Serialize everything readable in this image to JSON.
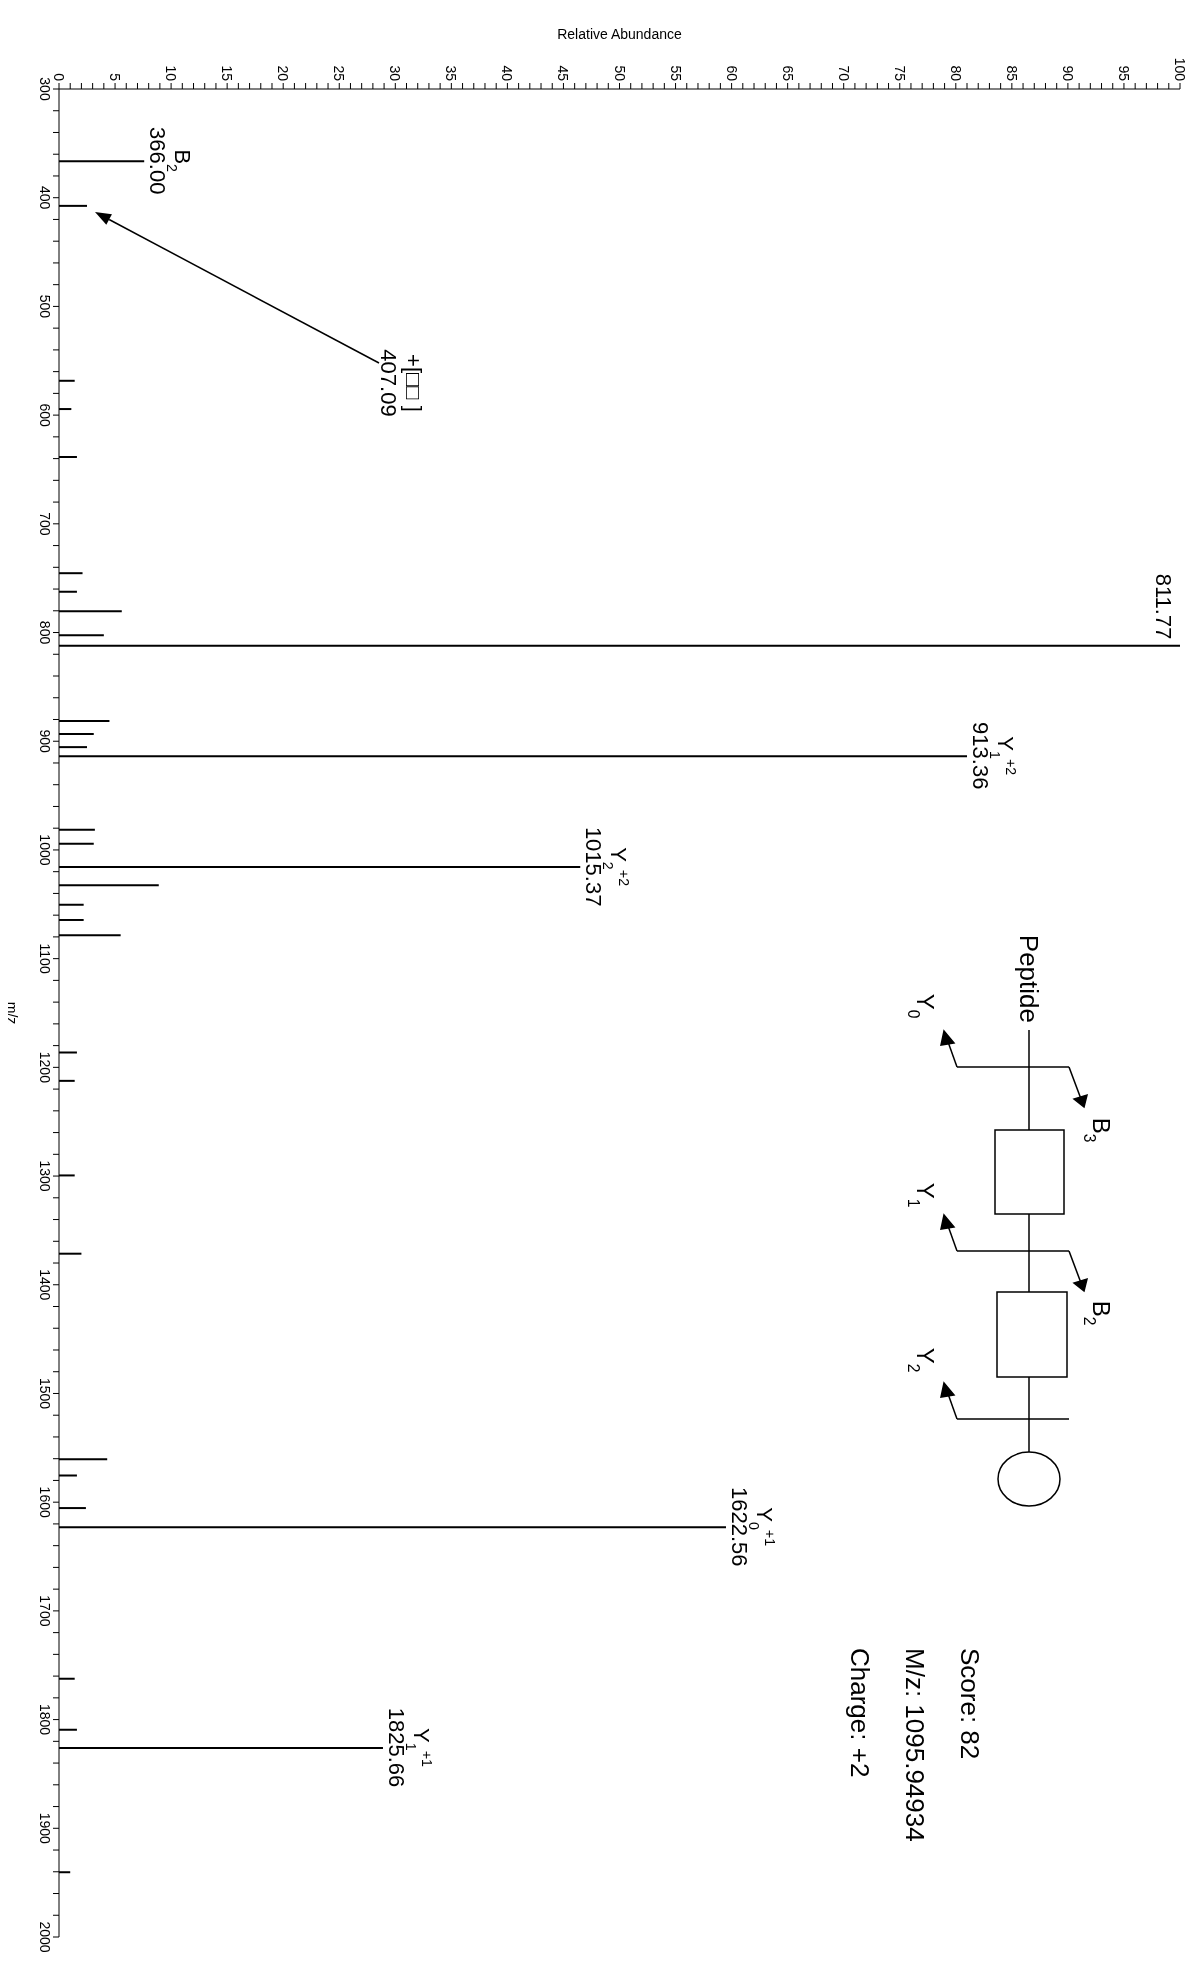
{
  "chart_data": {
    "type": "bar",
    "orientation": "horizontal",
    "xlabel": "Relative Abundance",
    "ylabel": "m/z",
    "color": "#000000",
    "x": [
      366.0,
      407.09,
      568,
      594,
      638,
      745,
      762,
      780,
      802,
      811.77,
      881,
      893,
      905,
      913.36,
      981,
      994,
      1015.37,
      1032,
      1050,
      1064,
      1078,
      1186,
      1212,
      1299,
      1371,
      1560,
      1575,
      1605,
      1622.56,
      1762,
      1809,
      1825.66,
      1940
    ],
    "values": [
      7.6,
      2.5,
      1.4,
      1.1,
      1.6,
      2.1,
      1.6,
      5.6,
      4.0,
      100,
      4.5,
      3.1,
      2.5,
      81,
      3.2,
      3.1,
      46.5,
      8.9,
      2.2,
      2.2,
      5.5,
      1.6,
      1.4,
      1.4,
      2.0,
      4.3,
      1.6,
      2.4,
      59.5,
      1.4,
      1.6,
      28.9,
      1.0
    ],
    "ylim": [
      2000,
      300
    ],
    "yticks": [
      300,
      {
        "value": 320,
        "label": null
      },
      {
        "value": 340,
        "label": null
      },
      {
        "value": 360,
        "label": null
      },
      {
        "value": 380,
        "label": null
      },
      400,
      {
        "value": 420,
        "label": null
      },
      {
        "value": 440,
        "label": null
      },
      {
        "value": 460,
        "label": null
      },
      {
        "value": 480,
        "label": null
      },
      500,
      {
        "value": 520,
        "label": null
      },
      {
        "value": 540,
        "label": null
      },
      {
        "value": 560,
        "label": null
      },
      {
        "value": 580,
        "label": null
      },
      600,
      {
        "value": 620,
        "label": null
      },
      {
        "value": 640,
        "label": null
      },
      {
        "value": 660,
        "label": null
      },
      {
        "value": 680,
        "label": null
      },
      700,
      {
        "value": 720,
        "label": null
      },
      {
        "value": 740,
        "label": null
      },
      {
        "value": 760,
        "label": null
      },
      {
        "value": 780,
        "label": null
      },
      800,
      {
        "value": 820,
        "label": null
      },
      {
        "value": 840,
        "label": null
      },
      {
        "value": 860,
        "label": null
      },
      {
        "value": 880,
        "label": null
      },
      900,
      {
        "value": 920,
        "label": null
      },
      {
        "value": 940,
        "label": null
      },
      {
        "value": 960,
        "label": null
      },
      {
        "value": 980,
        "label": null
      },
      1000,
      {
        "value": 1020,
        "label": null
      },
      {
        "value": 1040,
        "label": null
      },
      {
        "value": 1060,
        "label": null
      },
      {
        "value": 1080,
        "label": null
      },
      1100,
      {
        "value": 1120,
        "label": null
      },
      {
        "value": 1140,
        "label": null
      },
      {
        "value": 1160,
        "label": null
      },
      {
        "value": 1180,
        "label": null
      },
      1200,
      {
        "value": 1220,
        "label": null
      },
      {
        "value": 1240,
        "label": null
      },
      {
        "value": 1260,
        "label": null
      },
      {
        "value": 1280,
        "label": null
      },
      1300,
      {
        "value": 1320,
        "label": null
      },
      {
        "value": 1340,
        "label": null
      },
      {
        "value": 1360,
        "label": null
      },
      {
        "value": 1380,
        "label": null
      },
      1400,
      {
        "value": 1420,
        "label": null
      },
      {
        "value": 1440,
        "label": null
      },
      {
        "value": 1460,
        "label": null
      },
      {
        "value": 1480,
        "label": null
      },
      1500,
      {
        "value": 1520,
        "label": null
      },
      {
        "value": 1540,
        "label": null
      },
      {
        "value": 1560,
        "label": null
      },
      {
        "value": 1580,
        "label": null
      },
      1600,
      {
        "value": 1620,
        "label": null
      },
      {
        "value": 1640,
        "label": null
      },
      {
        "value": 1660,
        "label": null
      },
      {
        "value": 1680,
        "label": null
      },
      1700,
      {
        "value": 1720,
        "label": null
      },
      {
        "value": 1740,
        "label": null
      },
      {
        "value": 1760,
        "label": null
      },
      {
        "value": 1780,
        "label": null
      },
      1800,
      {
        "value": 1820,
        "label": null
      },
      {
        "value": 1840,
        "label": null
      },
      {
        "value": 1860,
        "label": null
      },
      {
        "value": 1880,
        "label": null
      },
      1900,
      {
        "value": 1920,
        "label": null
      },
      {
        "value": 1940,
        "label": null
      },
      {
        "value": 1960,
        "label": null
      },
      {
        "value": 1980,
        "label": null
      },
      2000
    ],
    "xlim": [
      0,
      100
    ],
    "xticks": [
      0,
      {
        "value": 1,
        "label": null
      },
      {
        "value": 2,
        "label": null
      },
      {
        "value": 3,
        "label": null
      },
      {
        "value": 4,
        "label": null
      },
      5,
      {
        "value": 6,
        "label": null
      },
      {
        "value": 7,
        "label": null
      },
      {
        "value": 8,
        "label": null
      },
      {
        "value": 9,
        "label": null
      },
      10,
      {
        "value": 11,
        "label": null
      },
      {
        "value": 12,
        "label": null
      },
      {
        "value": 13,
        "label": null
      },
      {
        "value": 14,
        "label": null
      },
      15,
      {
        "value": 16,
        "label": null
      },
      {
        "value": 17,
        "label": null
      },
      {
        "value": 18,
        "label": null
      },
      {
        "value": 19,
        "label": null
      },
      20,
      {
        "value": 21,
        "label": null
      },
      {
        "value": 22,
        "label": null
      },
      {
        "value": 23,
        "label": null
      },
      {
        "value": 24,
        "label": null
      },
      25,
      {
        "value": 26,
        "label": null
      },
      {
        "value": 27,
        "label": null
      },
      {
        "value": 28,
        "label": null
      },
      {
        "value": 29,
        "label": null
      },
      30,
      {
        "value": 31,
        "label": null
      },
      {
        "value": 32,
        "label": null
      },
      {
        "value": 33,
        "label": null
      },
      {
        "value": 34,
        "label": null
      },
      35,
      {
        "value": 36,
        "label": null
      },
      {
        "value": 37,
        "label": null
      },
      {
        "value": 38,
        "label": null
      },
      {
        "value": 39,
        "label": null
      },
      40,
      {
        "value": 41,
        "label": null
      },
      {
        "value": 42,
        "label": null
      },
      {
        "value": 43,
        "label": null
      },
      {
        "value": 44,
        "label": null
      },
      45,
      {
        "value": 46,
        "label": null
      },
      {
        "value": 47,
        "label": null
      },
      {
        "value": 48,
        "label": null
      },
      {
        "value": 49,
        "label": null
      },
      50,
      {
        "value": 51,
        "label": null
      },
      {
        "value": 52,
        "label": null
      },
      {
        "value": 53,
        "label": null
      },
      {
        "value": 54,
        "label": null
      },
      55,
      {
        "value": 56,
        "label": null
      },
      {
        "value": 57,
        "label": null
      },
      {
        "value": 58,
        "label": null
      },
      {
        "value": 59,
        "label": null
      },
      60,
      {
        "value": 61,
        "label": null
      },
      {
        "value": 62,
        "label": null
      },
      {
        "value": 63,
        "label": null
      },
      {
        "value": 64,
        "label": null
      },
      65,
      {
        "value": 66,
        "label": null
      },
      {
        "value": 67,
        "label": null
      },
      {
        "value": 68,
        "label": null
      },
      {
        "value": 69,
        "label": null
      },
      70,
      {
        "value": 71,
        "label": null
      },
      {
        "value": 72,
        "label": null
      },
      {
        "value": 73,
        "label": null
      },
      {
        "value": 74,
        "label": null
      },
      75,
      {
        "value": 76,
        "label": null
      },
      {
        "value": 77,
        "label": null
      },
      {
        "value": 78,
        "label": null
      },
      {
        "value": 79,
        "label": null
      },
      80,
      {
        "value": 81,
        "label": null
      },
      {
        "value": 82,
        "label": null
      },
      {
        "value": 83,
        "label": null
      },
      {
        "value": 84,
        "label": null
      },
      85,
      {
        "value": 86,
        "label": null
      },
      {
        "value": 87,
        "label": null
      },
      {
        "value": 88,
        "label": null
      },
      {
        "value": 89,
        "label": null
      },
      90,
      {
        "value": 91,
        "label": null
      },
      {
        "value": 92,
        "label": null
      },
      {
        "value": 93,
        "label": null
      },
      {
        "value": 94,
        "label": null
      },
      95,
      {
        "value": 96,
        "label": null
      },
      {
        "value": 97,
        "label": null
      },
      {
        "value": 98,
        "label": null
      },
      {
        "value": 99,
        "label": null
      },
      100
    ],
    "annotations": [
      {
        "text": "B$_{2}$\n366.00",
        "x": 7.6,
        "y": 366.0
      },
      {
        "text": "811.77",
        "x": 100,
        "y": 811.77
      },
      {
        "text": "Y$_{1}$$^{+2}$\n913.36",
        "x": 81,
        "y": 913.36
      },
      {
        "text": "Y$_{2}$$^{+2}$\n1015.37",
        "x": 46.5,
        "y": 1015.37
      },
      {
        "text": "Y$_{0}$$^{+1}$\n1622.56",
        "x": 59.5,
        "y": 1622.56
      },
      {
        "text": "Y$_{1}$$^{+1}$\n1825.66",
        "x": 28.9,
        "y": 1825.66
      },
      "Peptide",
      "Y$_{0}$",
      "B$_{3}$",
      "Y$_{1}$",
      "B$_{2}$",
      "Y$_{2}$",
      "Score: 82",
      "M/z: 1095.94934",
      "Charge: +2",
      "+[□□ ]\n407.09"
    ]
  }
}
